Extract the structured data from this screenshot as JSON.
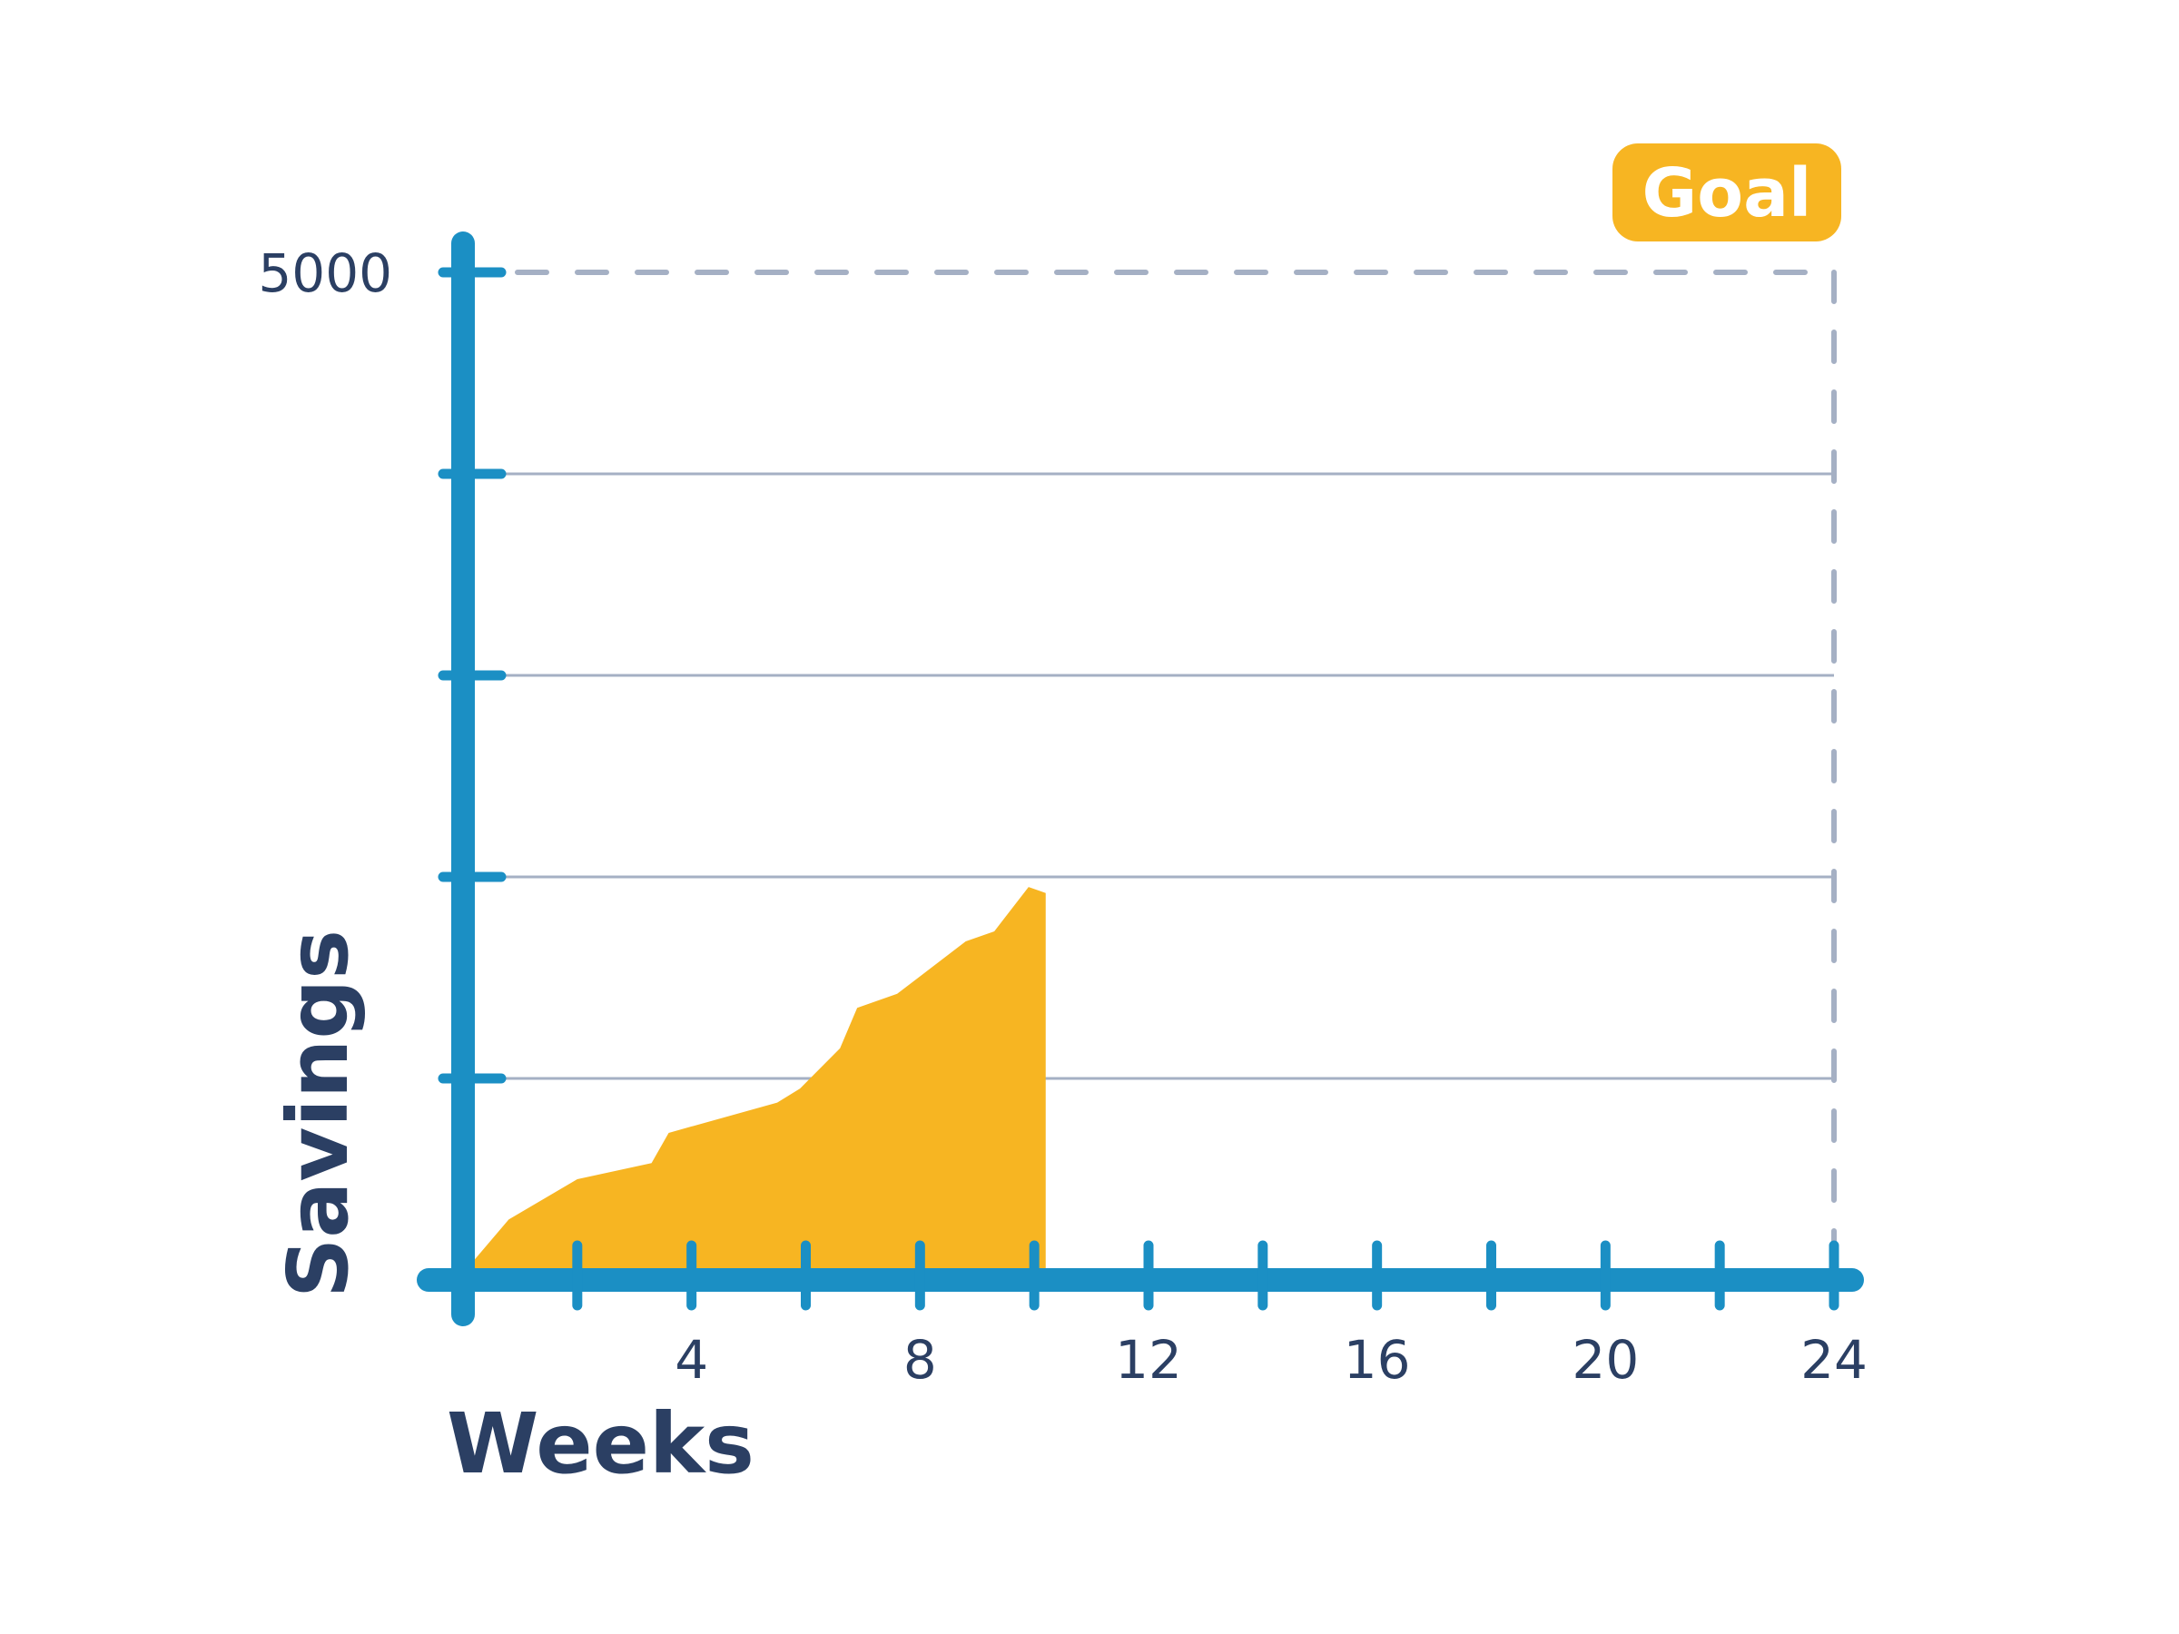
{
  "chart_data": {
    "type": "area",
    "xlabel": "Weeks",
    "ylabel": "Savings",
    "xlim": [
      0,
      24
    ],
    "ylim": [
      0,
      5000
    ],
    "x_tick_labels": [
      "4",
      "8",
      "12",
      "16",
      "20",
      "24"
    ],
    "y_tick_labels": [
      "5000"
    ],
    "goal": {
      "label": "Goal",
      "x": 24,
      "y": 5000
    },
    "colors": {
      "area": "#f7b522",
      "axis": "#1b8fc4",
      "grid": "#a5b0c4",
      "text": "#2b3f63",
      "goal_badge": "#f7b522"
    },
    "series": [
      {
        "x": [
          0.2,
          0.8,
          2.0,
          3.3,
          3.6,
          5.5,
          5.9,
          6.6,
          6.9,
          7.6,
          8.8,
          9.3,
          9.9,
          10.2
        ],
        "y": [
          100,
          300,
          500,
          580,
          730,
          880,
          950,
          1150,
          1350,
          1420,
          1680,
          1730,
          1950,
          1920
        ]
      }
    ]
  }
}
